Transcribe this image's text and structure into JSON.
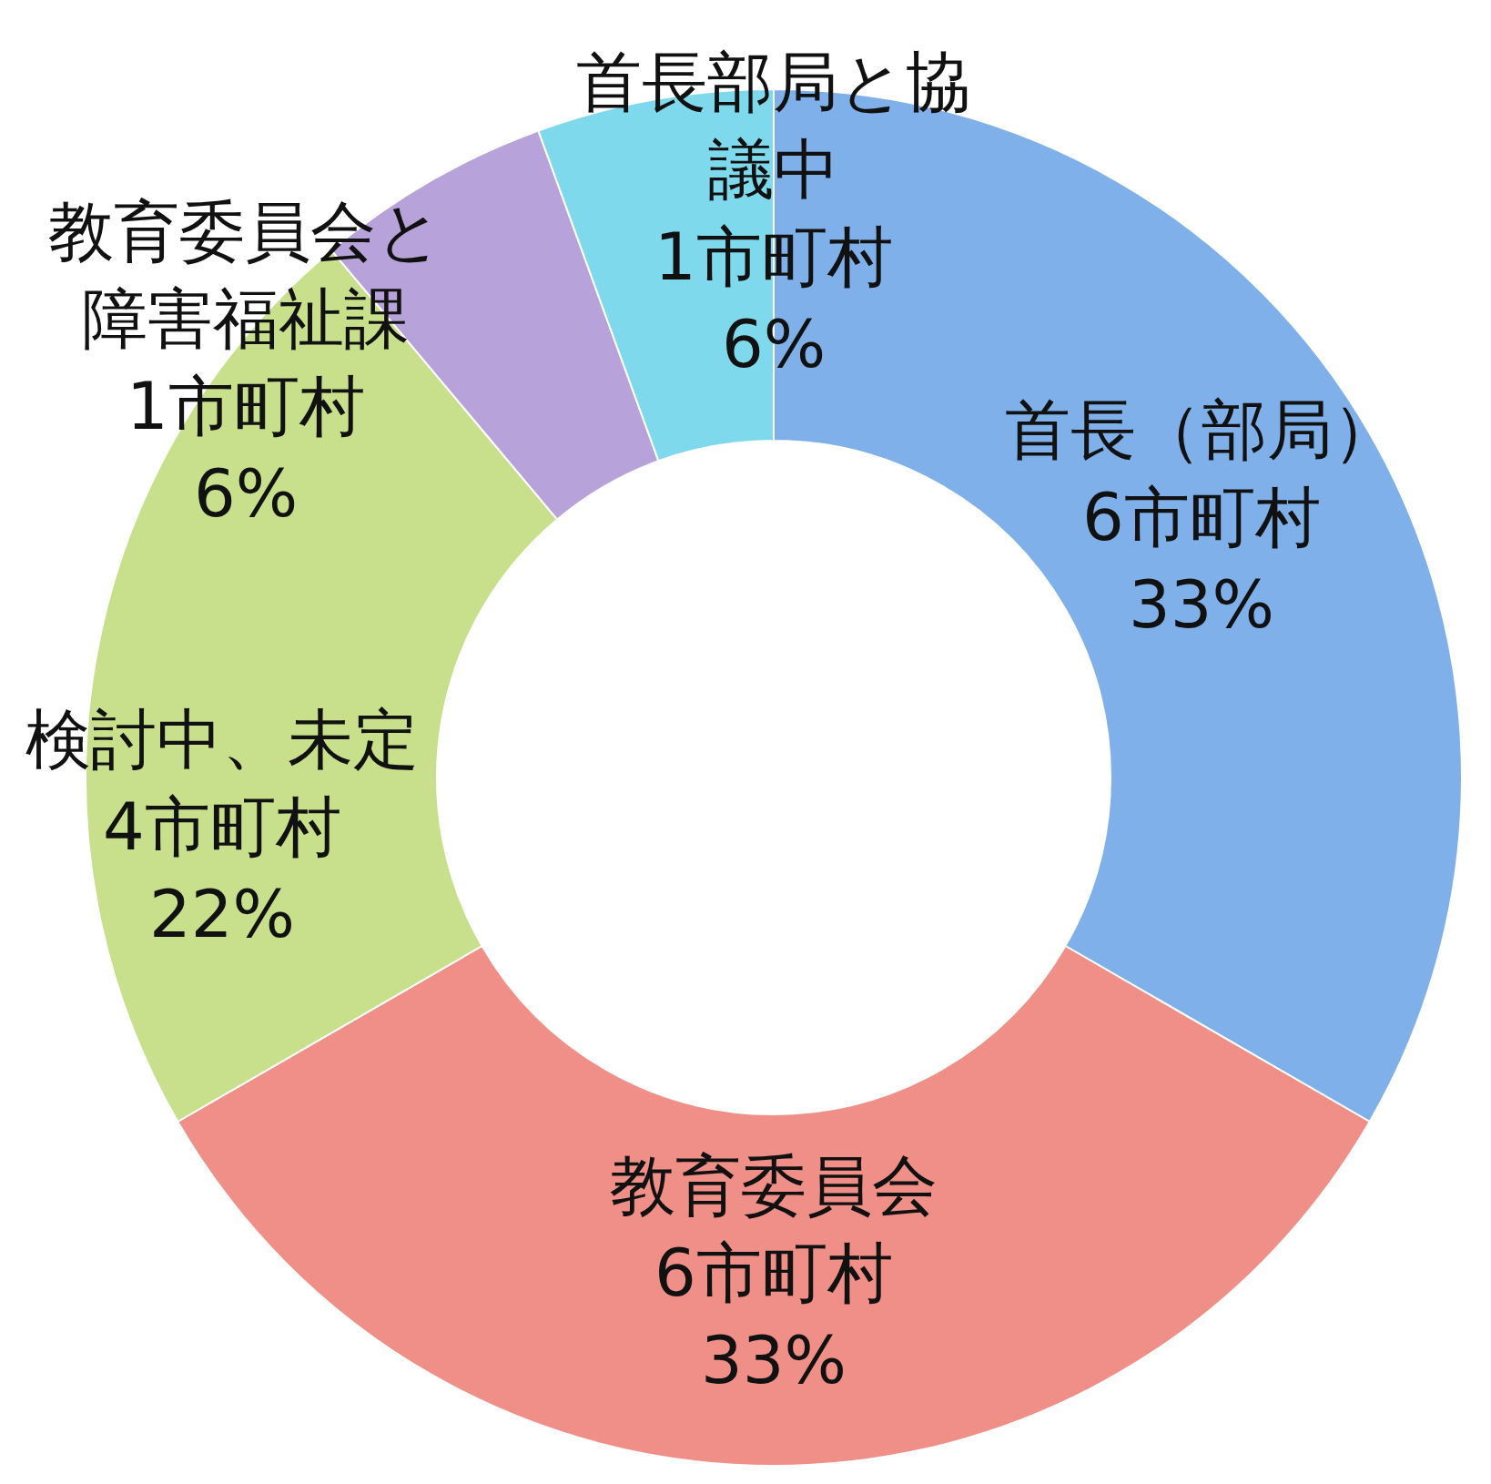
{
  "chart_data": {
    "type": "donut",
    "categories": [
      "首長（部局）",
      "教育委員会",
      "検討中、未定",
      "教育委員会と障害福祉課",
      "首長部局と協議中"
    ],
    "values": [
      6,
      6,
      4,
      1,
      1
    ],
    "value_labels": [
      "6市町村 33%",
      "6市町村 33%",
      "4市町村 22%",
      "1市町村 6%",
      "1市町村 6%"
    ],
    "colors": [
      "#7fb0ea",
      "#f08f88",
      "#c8e08c",
      "#b8a2da",
      "#7fd9ec"
    ]
  }
}
